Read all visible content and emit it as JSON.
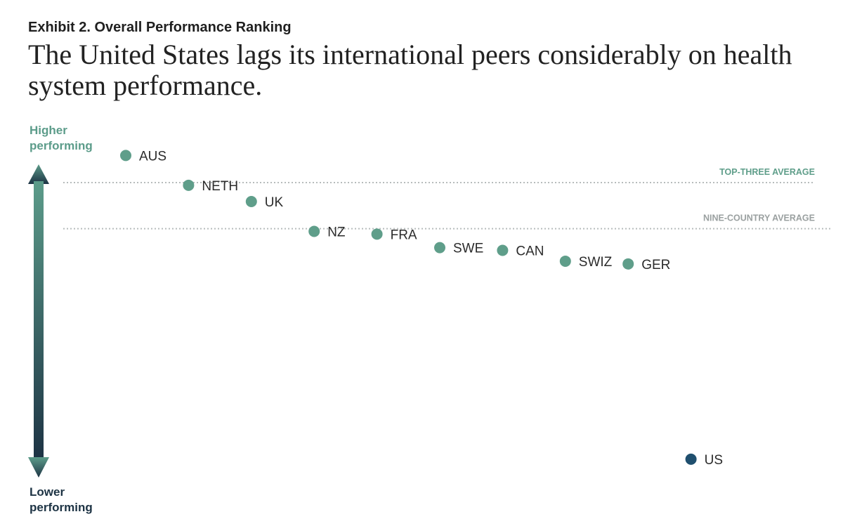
{
  "exhibit_label": "Exhibit 2. Overall Performance Ranking",
  "headline": "The United States lags its international peers considerably on health system performance.",
  "axis": {
    "top_label": "Higher\nperforming",
    "bottom_label": "Lower\nperforming"
  },
  "colors": {
    "axis_top": "#5c9c8a",
    "axis_bottom": "#1d3344",
    "dot_default": "#5f9e8a",
    "dot_us": "#1f4f6e",
    "reference_line": "#b7bcbc",
    "top_three_label": "#5f9e8a",
    "nine_country_label": "#9aa0a0"
  },
  "chart_data": {
    "type": "scatter",
    "title": "Overall Performance Ranking",
    "ylabel_top": "Higher performing",
    "ylabel_bottom": "Lower performing",
    "grid": false,
    "ylim": [
      -1.0,
      0.45
    ],
    "series": [
      {
        "points": [
          {
            "label": "AUS",
            "x": 1,
            "y": 0.33
          },
          {
            "label": "NETH",
            "x": 2,
            "y": 0.22
          },
          {
            "label": "UK",
            "x": 3,
            "y": 0.16
          },
          {
            "label": "NZ",
            "x": 4,
            "y": 0.05
          },
          {
            "label": "FRA",
            "x": 5,
            "y": 0.04
          },
          {
            "label": "SWE",
            "x": 6,
            "y": -0.01
          },
          {
            "label": "CAN",
            "x": 7,
            "y": -0.02
          },
          {
            "label": "SWIZ",
            "x": 8,
            "y": -0.06
          },
          {
            "label": "GER",
            "x": 9,
            "y": -0.07
          },
          {
            "label": "US",
            "x": 10,
            "y": -0.79
          }
        ]
      }
    ],
    "reference_lines": [
      {
        "label": "TOP-THREE AVERAGE",
        "y": 0.23
      },
      {
        "label": "NINE-COUNTRY AVERAGE",
        "y": 0.06
      }
    ]
  }
}
